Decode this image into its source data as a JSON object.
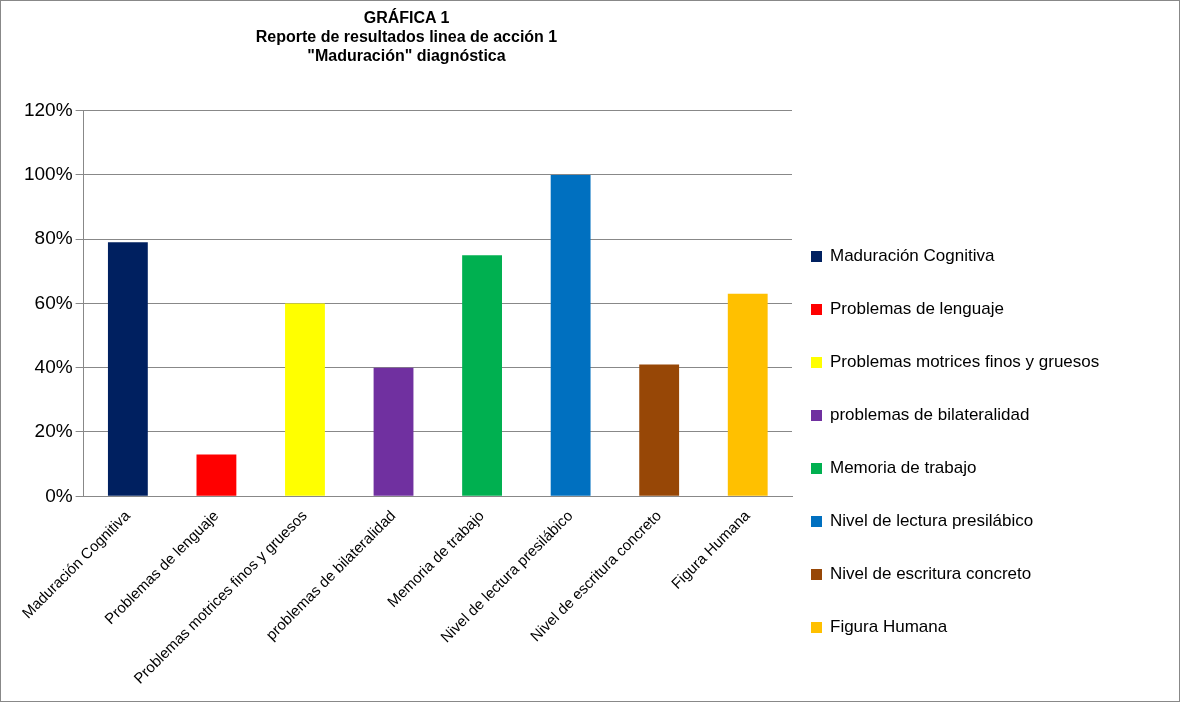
{
  "chart_data": {
    "type": "bar",
    "title": "GRÁFICA 1\nReporte de resultados linea de acción 1\n\"Maduración\" diagnóstica",
    "categories": [
      "Maduración Cognitiva",
      "Problemas de lenguaje",
      "Problemas motrices finos y gruesos",
      "problemas de bilateralidad",
      "Memoria de trabajo",
      "Nivel de lectura presilábico",
      "Nivel de escritura concreto",
      "Figura Humana"
    ],
    "series": [
      {
        "name": "Maduración Cognitiva",
        "color": "#002060",
        "values": [
          79,
          null,
          null,
          null,
          null,
          null,
          null,
          null
        ]
      },
      {
        "name": "Problemas de lenguaje",
        "color": "#ff0000",
        "values": [
          null,
          13,
          null,
          null,
          null,
          null,
          null,
          null
        ]
      },
      {
        "name": "Problemas motrices finos y gruesos",
        "color": "#ffff00",
        "values": [
          null,
          null,
          60,
          null,
          null,
          null,
          null,
          null
        ]
      },
      {
        "name": "problemas de bilateralidad",
        "color": "#7030a0",
        "values": [
          null,
          null,
          null,
          40,
          null,
          null,
          null,
          null
        ]
      },
      {
        "name": "Memoria de trabajo",
        "color": "#00b050",
        "values": [
          null,
          null,
          null,
          null,
          75,
          null,
          null,
          null
        ]
      },
      {
        "name": "Nivel de lectura presilábico",
        "color": "#0070c0",
        "values": [
          null,
          null,
          null,
          null,
          null,
          100,
          null,
          null
        ]
      },
      {
        "name": "Nivel de escritura concreto",
        "color": "#974706",
        "values": [
          null,
          null,
          null,
          null,
          null,
          null,
          41,
          null
        ]
      },
      {
        "name": "Figura Humana",
        "color": "#ffc000",
        "values": [
          null,
          null,
          null,
          null,
          null,
          null,
          null,
          63
        ]
      }
    ],
    "ylim": [
      0,
      120
    ],
    "yticks": [
      {
        "value": 0,
        "label": "0%"
      },
      {
        "value": 20,
        "label": "20%"
      },
      {
        "value": 40,
        "label": "40%"
      },
      {
        "value": 60,
        "label": "60%"
      },
      {
        "value": 80,
        "label": "80%"
      },
      {
        "value": 100,
        "label": "100%"
      },
      {
        "value": 120,
        "label": "120%"
      }
    ],
    "grid": "y",
    "legend": "right"
  }
}
